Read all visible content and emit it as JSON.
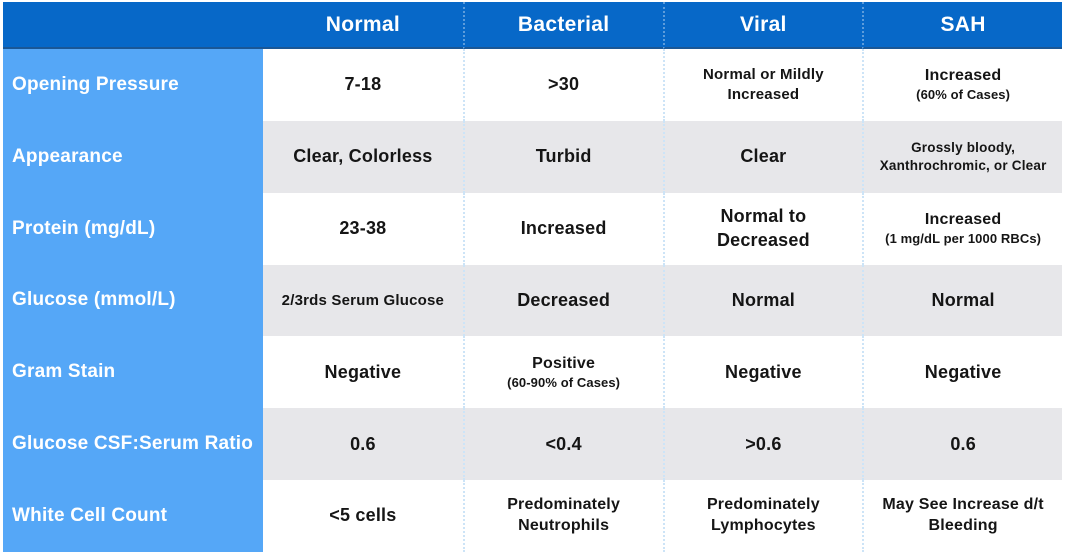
{
  "colors": {
    "header_bg": "#0768C8",
    "label_bg": "#55A7F7",
    "row_bg": "#FFFFFF",
    "alt_row_bg": "#E7E7EA",
    "header_text": "#FFFFFF",
    "cell_text": "#151515",
    "header_divider": "#1A5796",
    "col_divider": "#CDE4F7"
  },
  "table": {
    "corner_label": "",
    "columns": [
      "Normal",
      "Bacterial",
      "Viral",
      "SAH"
    ],
    "rows": [
      {
        "label": "Opening Pressure",
        "cells": [
          {
            "main": "7-18"
          },
          {
            "main": ">30"
          },
          {
            "main": "Normal or Mildly Increased"
          },
          {
            "main": "Increased",
            "sub": "(60% of Cases)"
          }
        ]
      },
      {
        "label": "Appearance",
        "cells": [
          {
            "main": "Clear, Colorless"
          },
          {
            "main": "Turbid"
          },
          {
            "main": "Clear"
          },
          {
            "main": "Grossly bloody, Xanthrochromic, or Clear"
          }
        ]
      },
      {
        "label": "Protein (mg/dL)",
        "cells": [
          {
            "main": "23-38"
          },
          {
            "main": "Increased"
          },
          {
            "main": "Normal to Decreased"
          },
          {
            "main": "Increased",
            "sub": "(1 mg/dL per 1000 RBCs)"
          }
        ]
      },
      {
        "label": "Glucose (mmol/L)",
        "cells": [
          {
            "main": "2/3rds Serum Glucose"
          },
          {
            "main": "Decreased"
          },
          {
            "main": "Normal"
          },
          {
            "main": "Normal"
          }
        ]
      },
      {
        "label": "Gram Stain",
        "cells": [
          {
            "main": "Negative"
          },
          {
            "main": "Positive",
            "sub": "(60-90% of Cases)"
          },
          {
            "main": "Negative"
          },
          {
            "main": "Negative"
          }
        ]
      },
      {
        "label": "Glucose CSF:Serum Ratio",
        "cells": [
          {
            "main": "0.6"
          },
          {
            "main": "<0.4"
          },
          {
            "main": ">0.6"
          },
          {
            "main": "0.6"
          }
        ]
      },
      {
        "label": "White Cell Count",
        "cells": [
          {
            "main": "<5 cells"
          },
          {
            "main": "Predominately Neutrophils"
          },
          {
            "main": "Predominately Lymphocytes"
          },
          {
            "main": "May See Increase d/t Bleeding"
          }
        ]
      }
    ]
  }
}
